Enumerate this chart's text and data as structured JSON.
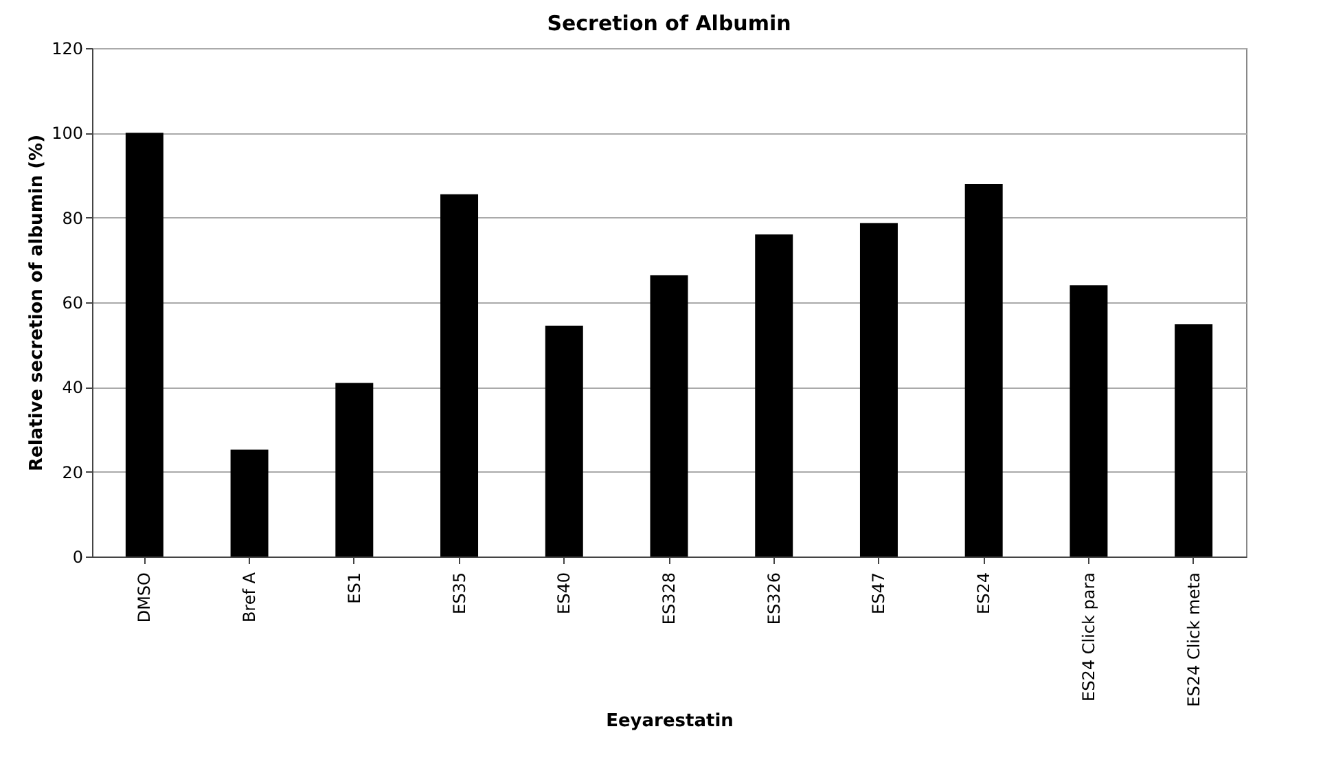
{
  "chart_data": {
    "type": "bar",
    "title": "Secretion of Albumin",
    "xlabel": "Eeyarestatin",
    "ylabel": "Relative secretion of albumin (%)",
    "categories": [
      "DMSO",
      "Bref A",
      "ES1",
      "ES35",
      "ES40",
      "ES328",
      "ES326",
      "ES47",
      "ES24",
      "ES24 Click para",
      "ES24 Click meta"
    ],
    "values": [
      100,
      25.2,
      41.0,
      85.5,
      54.5,
      66.4,
      76.0,
      78.7,
      87.9,
      64.0,
      54.8
    ],
    "color": "#000000",
    "ylim": [
      0,
      120
    ],
    "yticks": [
      0,
      20,
      40,
      60,
      80,
      100,
      120
    ],
    "grid": "y"
  }
}
